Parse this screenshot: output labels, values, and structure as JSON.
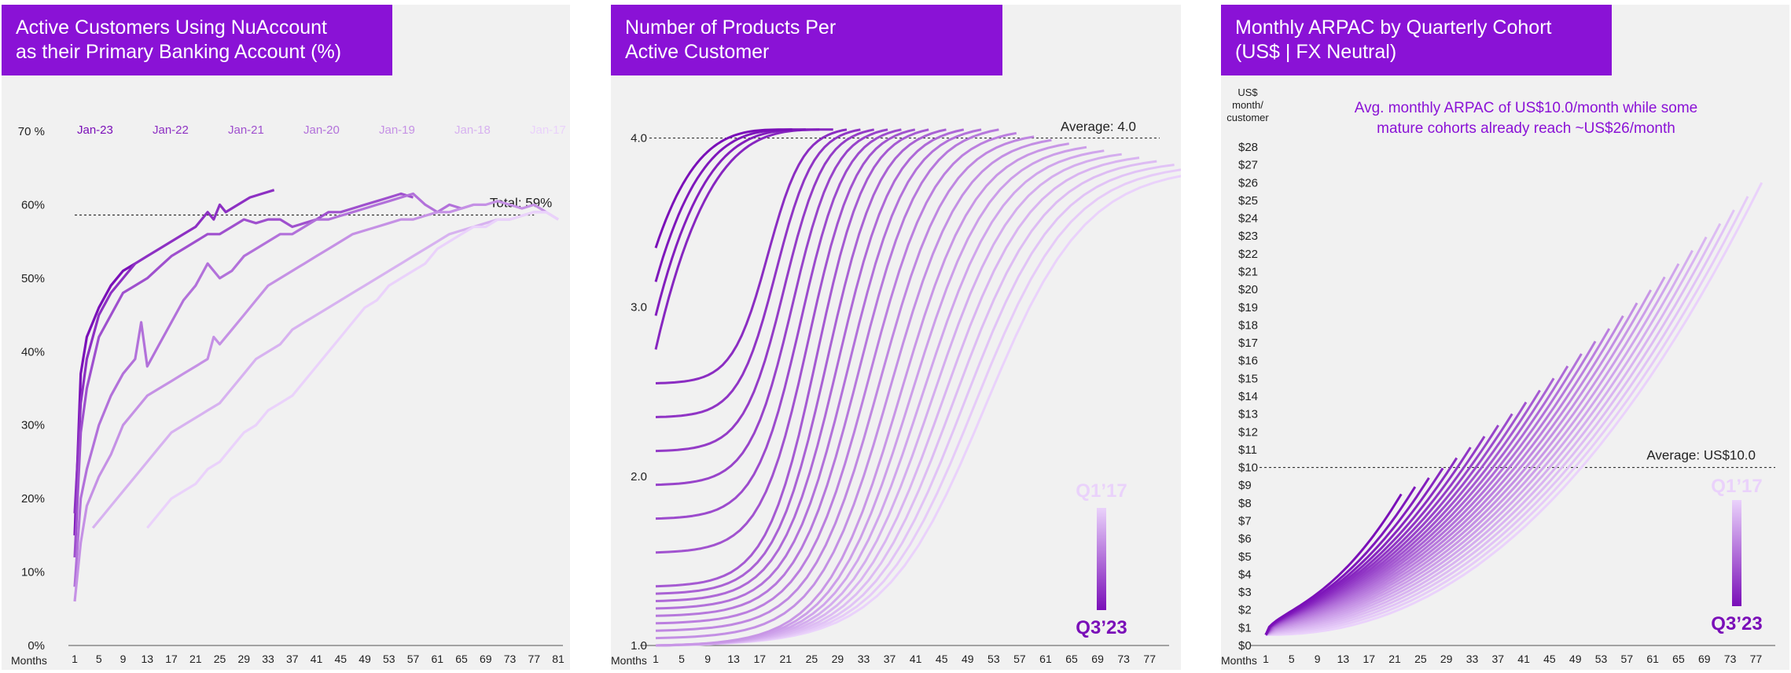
{
  "panels": [
    {
      "title": "Active Customers Using NuAccount\nas their Primary Banking Account (%)"
    },
    {
      "title": "Number of Products Per\nActive Customer"
    },
    {
      "title": "Monthly ARPAC by Quarterly Cohort\n(US$ | FX Neutral)"
    }
  ],
  "colors": {
    "title_bg": "#8a12d6",
    "cohort_newest": "#7a0fb8",
    "cohort_oldest": "#ead2fb",
    "panel_bg": "#f1f1f1"
  },
  "chart_data": [
    {
      "type": "line",
      "title": "Active Customers Using NuAccount as their Primary Banking Account (%)",
      "xlabel": "Months",
      "x_ticks": [
        "1",
        "5",
        "9",
        "13",
        "17",
        "21",
        "25",
        "29",
        "33",
        "37",
        "41",
        "45",
        "49",
        "53",
        "57",
        "61",
        "65",
        "69",
        "73",
        "77",
        "81"
      ],
      "y_ticks": [
        "0%",
        "10%",
        "20%",
        "30%",
        "40%",
        "50%",
        "60%",
        "70 %"
      ],
      "xlim": [
        1,
        81
      ],
      "ylim": [
        0,
        70
      ],
      "reference_line": {
        "label": "Total: 59%",
        "value": 58.6
      },
      "series": [
        {
          "name": "Jan-23",
          "x": [
            1,
            2,
            3,
            5,
            7,
            9,
            11
          ],
          "y": [
            15,
            37,
            42,
            46,
            49,
            51,
            52
          ]
        },
        {
          "name": "Jan-22",
          "x": [
            1,
            2,
            3,
            5,
            7,
            9,
            11,
            13,
            15,
            17,
            19,
            21,
            23,
            24,
            25,
            26,
            28,
            30,
            32,
            34
          ],
          "y": [
            18,
            33,
            39,
            45,
            48,
            50,
            52,
            53,
            54,
            55,
            56,
            57,
            59,
            58,
            60,
            59,
            60,
            61,
            61.5,
            62
          ]
        },
        {
          "name": "Jan-21",
          "x": [
            1,
            2,
            3,
            5,
            7,
            9,
            11,
            13,
            15,
            17,
            19,
            21,
            23,
            25,
            27,
            29,
            31,
            33,
            35,
            37,
            39,
            41,
            43,
            45,
            47,
            49,
            51,
            53,
            55,
            57
          ],
          "y": [
            12,
            29,
            35,
            42,
            45,
            48,
            49,
            50,
            51.5,
            53,
            54,
            55,
            56,
            56,
            57,
            58,
            57.5,
            58,
            58,
            57,
            57.5,
            58,
            59,
            59,
            59.5,
            60,
            60.5,
            61,
            61.5,
            61
          ]
        },
        {
          "name": "Jan-20",
          "x": [
            1,
            2,
            3,
            5,
            7,
            9,
            11,
            12,
            13,
            15,
            17,
            19,
            21,
            23,
            25,
            27,
            29,
            31,
            33,
            35,
            37,
            39,
            41,
            43,
            45,
            47,
            49,
            51,
            53,
            55,
            57,
            59,
            61,
            63,
            65,
            67
          ],
          "y": [
            8,
            20,
            24,
            30,
            34,
            37,
            39,
            44,
            38,
            41,
            44,
            47,
            49,
            52,
            50,
            51,
            53,
            54,
            55,
            56,
            56,
            57,
            58,
            58,
            58.5,
            59,
            59.5,
            60,
            60.5,
            61,
            61.5,
            60,
            59,
            60,
            59.5,
            60
          ]
        },
        {
          "name": "Jan-19",
          "x": [
            1,
            2,
            3,
            5,
            7,
            9,
            11,
            13,
            15,
            17,
            19,
            21,
            23,
            24,
            25,
            27,
            29,
            31,
            33,
            35,
            37,
            39,
            41,
            43,
            45,
            47,
            49,
            51,
            53,
            55,
            57,
            59,
            61,
            63,
            65,
            67,
            69,
            71,
            73,
            75,
            77,
            79
          ],
          "y": [
            6,
            14,
            19,
            23,
            26,
            30,
            32,
            34,
            35,
            36,
            37,
            38,
            39,
            42,
            41,
            43,
            45,
            47,
            49,
            50,
            51,
            52,
            53,
            54,
            55,
            56,
            56.5,
            57,
            57.5,
            58,
            58,
            58.5,
            59,
            59,
            59.5,
            60,
            60,
            60.5,
            60,
            59.5,
            60,
            59
          ]
        },
        {
          "name": "Jan-18",
          "x": [
            4,
            5,
            7,
            9,
            11,
            13,
            15,
            17,
            19,
            21,
            23,
            25,
            27,
            29,
            31,
            33,
            35,
            37,
            39,
            41,
            43,
            45,
            47,
            49,
            51,
            53,
            55,
            57,
            59,
            61,
            63,
            65,
            67,
            69,
            71,
            73,
            75,
            77,
            79,
            81
          ],
          "y": [
            16,
            17,
            19,
            21,
            23,
            25,
            27,
            29,
            30,
            31,
            32,
            33,
            35,
            37,
            39,
            40,
            41,
            43,
            44,
            45,
            46,
            47,
            48,
            49,
            50,
            51,
            52,
            53,
            54,
            55,
            56,
            56.5,
            57,
            57.5,
            58,
            58,
            58.5,
            59,
            59,
            58
          ]
        },
        {
          "name": "Jan-17",
          "x": [
            13,
            15,
            17,
            19,
            21,
            23,
            25,
            27,
            29,
            31,
            33,
            35,
            37,
            39,
            41,
            43,
            45,
            47,
            49,
            51,
            53,
            55,
            57,
            59,
            61,
            63,
            65,
            67,
            69,
            71,
            73,
            75,
            77,
            79,
            81
          ],
          "y": [
            16,
            18,
            20,
            21,
            22,
            24,
            25,
            27,
            29,
            30,
            32,
            33,
            34,
            36,
            38,
            40,
            42,
            44,
            46,
            47,
            49,
            50,
            51,
            52,
            54,
            55,
            56,
            57,
            57,
            58,
            58,
            58.5,
            59,
            59,
            58
          ]
        }
      ]
    },
    {
      "type": "line",
      "title": "Number of Products Per Active Customer",
      "xlabel": "Months",
      "x_ticks": [
        "1",
        "5",
        "9",
        "13",
        "17",
        "21",
        "25",
        "29",
        "33",
        "37",
        "41",
        "45",
        "49",
        "53",
        "57",
        "61",
        "65",
        "69",
        "73",
        "77"
      ],
      "y_ticks": [
        "1.0",
        "2.0",
        "3.0",
        "4.0"
      ],
      "xlim": [
        1,
        80
      ],
      "ylim": [
        1.0,
        4.3
      ],
      "reference_line": {
        "label": "Average: 4.0",
        "value": 4.0
      },
      "legend": {
        "oldest": "Q1’17",
        "newest": "Q3’23"
      },
      "series_count": 27,
      "series_description": "27 quarterly cohorts from Q3’23 (darkest, shortest) to Q1’17 (lightest, longest); each rises from about 1.0–3.4 toward roughly 3.8–4.1"
    },
    {
      "type": "line",
      "title": "Monthly ARPAC by Quarterly Cohort (US$ | FX Neutral)",
      "xlabel": "Months",
      "ylabel": "US$ month/ customer",
      "x_ticks": [
        "1",
        "5",
        "9",
        "13",
        "17",
        "21",
        "25",
        "29",
        "33",
        "37",
        "41",
        "45",
        "49",
        "53",
        "57",
        "61",
        "65",
        "69",
        "73",
        "77"
      ],
      "y_ticks": [
        "$0",
        "$1",
        "$2",
        "$3",
        "$4",
        "$5",
        "$6",
        "$7",
        "$8",
        "$9",
        "$10",
        "$11",
        "$12",
        "$13",
        "$14",
        "$15",
        "$16",
        "$17",
        "$18",
        "$19",
        "$20",
        "$21",
        "$22",
        "$23",
        "$24",
        "$25",
        "$26",
        "$27",
        "$28"
      ],
      "xlim": [
        1,
        80
      ],
      "ylim": [
        0,
        28
      ],
      "reference_line": {
        "label": "Average: US$10.0",
        "value": 10.0
      },
      "annotation": "Avg. monthly ARPAC of US$10.0/month while some\nmature cohorts already reach ~US$26/month",
      "legend": {
        "oldest": "Q1’17",
        "newest": "Q3’23"
      },
      "series_count": 27,
      "series_description": "27 quarterly cohorts from Q3’23 (darkest, shortest, ~US$8 by month 22) to Q1’17 (lightest, longest, ~US$26 by month 79)"
    }
  ]
}
